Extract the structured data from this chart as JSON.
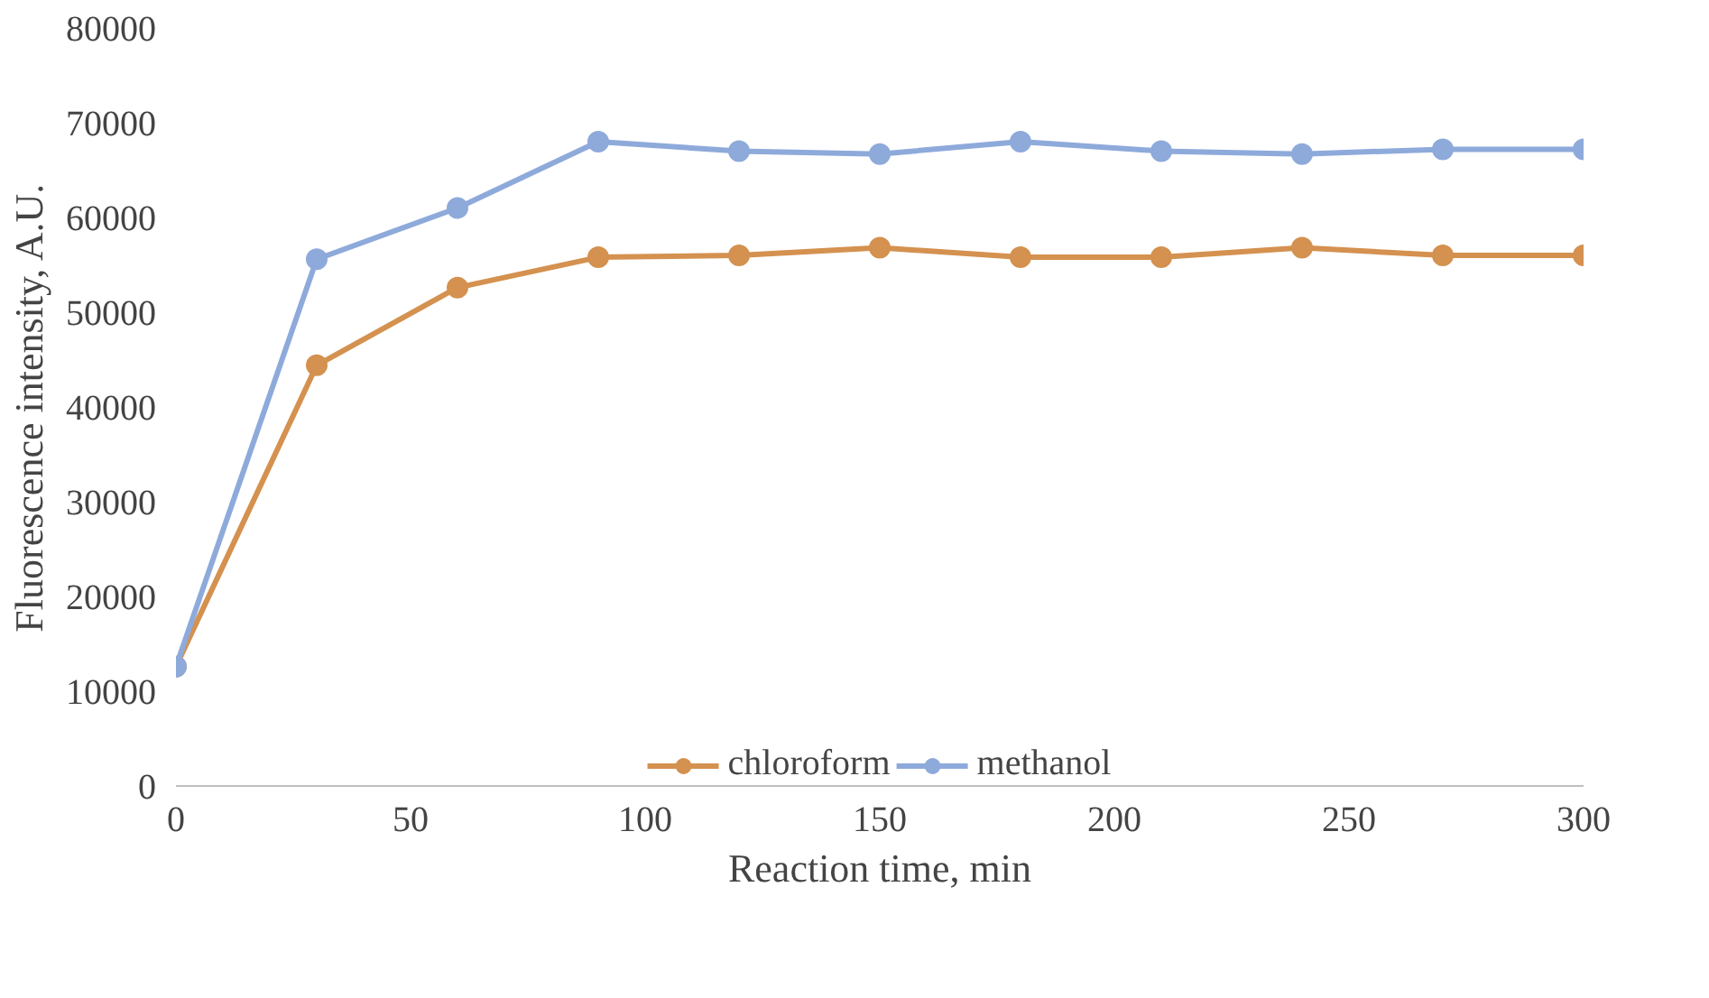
{
  "chart_data": {
    "type": "line",
    "xlabel": "Reaction time, min",
    "ylabel": "Fluorescence intensity, A.U.",
    "x": [
      0,
      30,
      60,
      90,
      120,
      150,
      180,
      210,
      240,
      270,
      300
    ],
    "series": [
      {
        "name": "chloroform",
        "color": "#d4914f",
        "values": [
          12600,
          44400,
          52600,
          55800,
          56000,
          56800,
          55800,
          55800,
          56800,
          56000,
          56000
        ]
      },
      {
        "name": "methanol",
        "color": "#8eaadb",
        "values": [
          12600,
          55600,
          61000,
          68000,
          67000,
          66700,
          68000,
          67000,
          66700,
          67200,
          67200
        ]
      }
    ],
    "xlim": [
      0,
      300
    ],
    "ylim": [
      0,
      80000
    ],
    "xticks": [
      0,
      50,
      100,
      150,
      200,
      250,
      300
    ],
    "yticks": [
      0,
      10000,
      20000,
      30000,
      40000,
      50000,
      60000,
      70000,
      80000
    ],
    "grid": false,
    "legend": "bottom",
    "marker": "circle",
    "line_style": "solid"
  }
}
